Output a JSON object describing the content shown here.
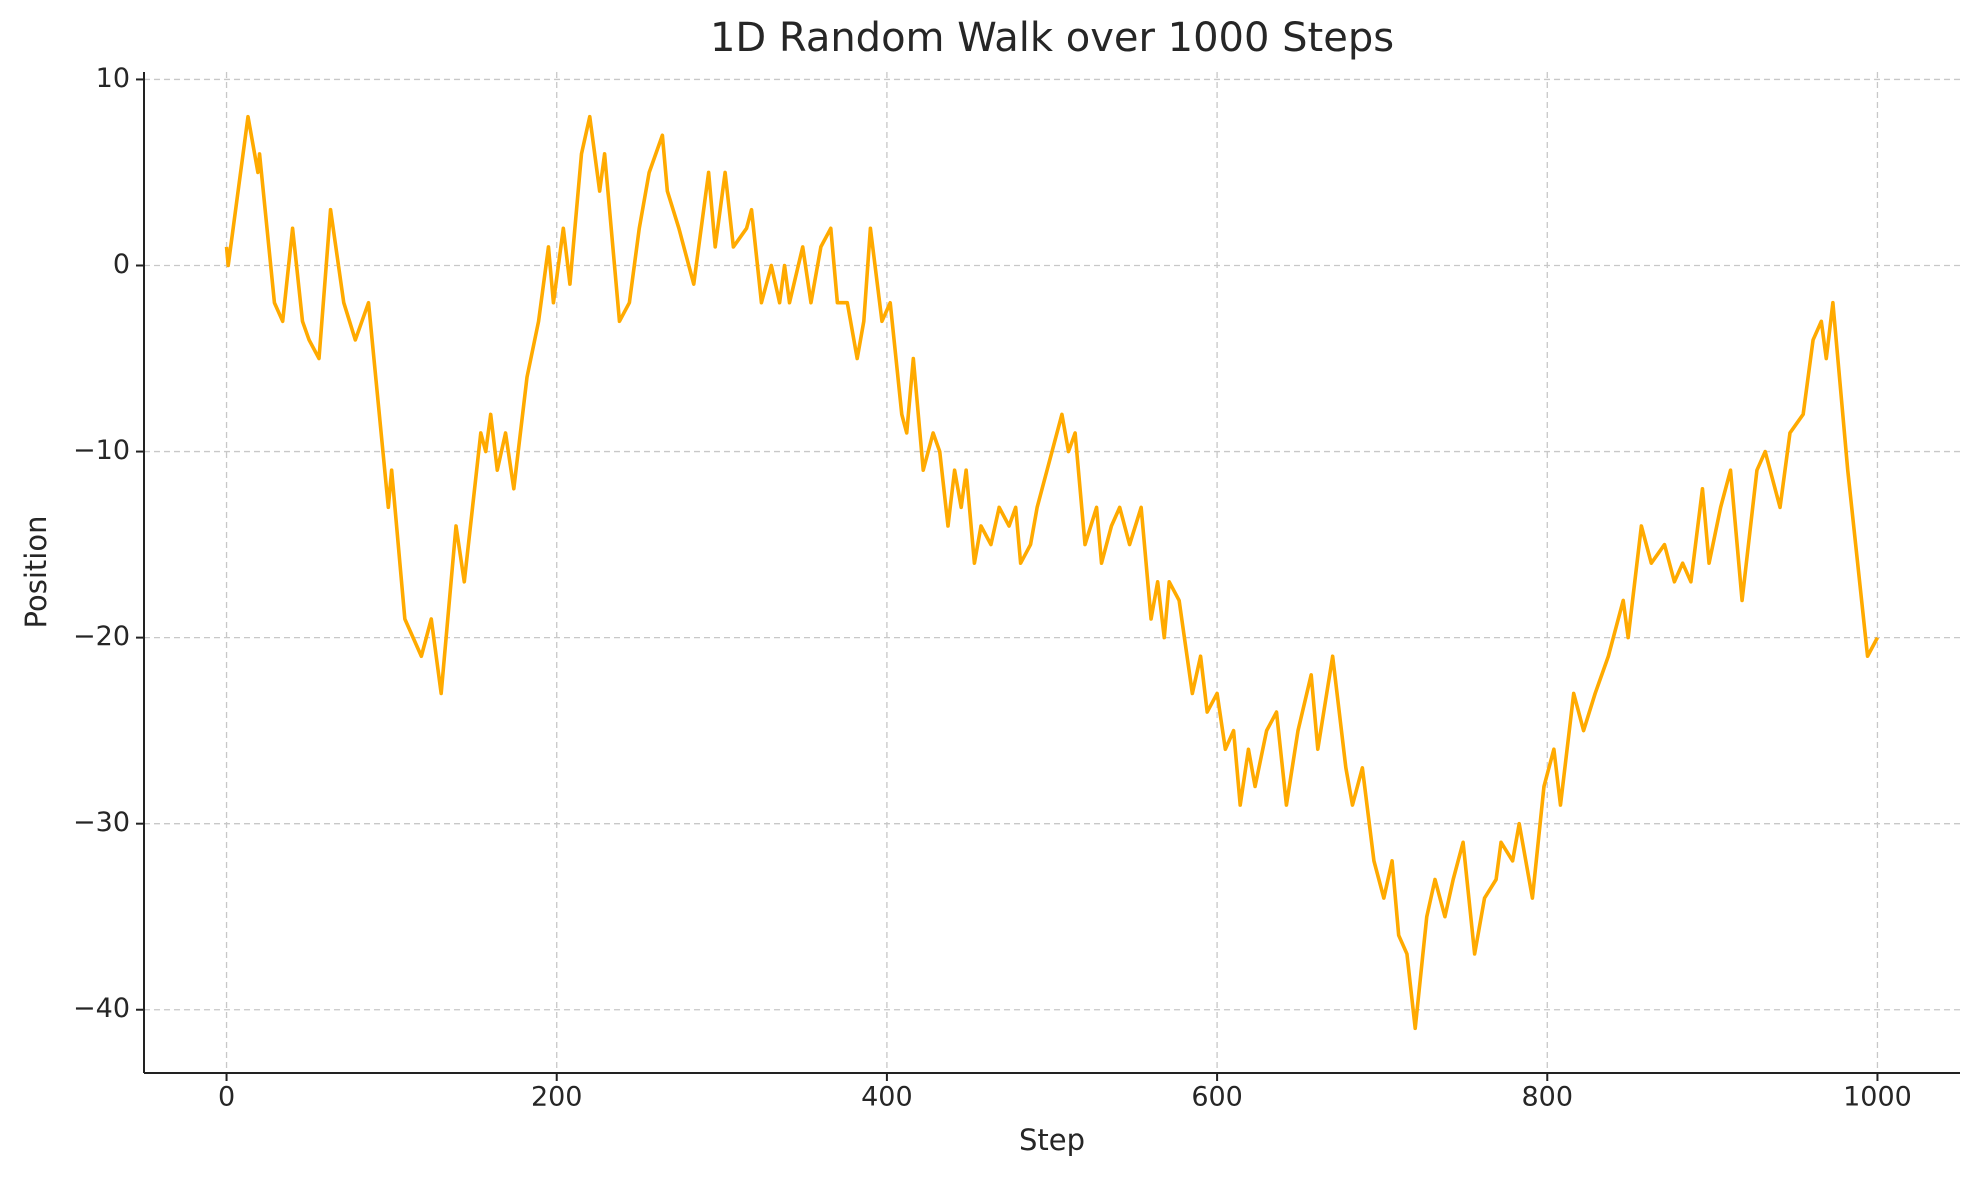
{
  "chart_data": {
    "type": "line",
    "title": "1D Random Walk over 1000 Steps",
    "x_label": "Step",
    "y_label": "Position",
    "x": [
      0,
      1,
      13,
      19,
      20,
      29,
      34,
      40,
      46,
      50,
      56,
      63,
      71,
      78,
      86,
      98,
      100,
      108,
      113,
      118,
      124,
      130,
      139,
      144,
      149,
      154,
      157,
      160,
      164,
      169,
      174,
      182,
      189,
      195,
      198,
      204,
      208,
      215,
      220,
      226,
      229,
      238,
      244,
      250,
      256,
      264,
      267,
      274,
      283,
      292,
      296,
      302,
      307,
      315,
      318,
      324,
      330,
      335,
      338,
      341,
      349,
      354,
      360,
      366,
      370,
      376,
      382,
      386,
      390,
      397,
      402,
      409,
      412,
      416,
      422,
      428,
      432,
      437,
      441,
      445,
      448,
      453,
      457,
      463,
      468,
      474,
      478,
      481,
      487,
      491,
      497,
      506,
      510,
      514,
      520,
      527,
      530,
      536,
      541,
      547,
      554,
      560,
      564,
      568,
      571,
      577,
      585,
      590,
      594,
      600,
      605,
      610,
      614,
      619,
      623,
      630,
      636,
      642,
      649,
      657,
      661,
      670,
      678,
      682,
      688,
      695,
      701,
      706,
      710,
      715,
      720,
      727,
      732,
      738,
      743,
      749,
      756,
      762,
      769,
      772,
      779,
      783,
      791,
      798,
      804,
      808,
      816,
      822,
      829,
      837,
      846,
      849,
      857,
      863,
      871,
      877,
      882,
      887,
      894,
      898,
      905,
      911,
      918,
      927,
      932,
      941,
      947,
      955,
      961,
      966,
      969,
      973,
      982,
      994,
      1000
    ],
    "values": [
      1,
      0,
      8,
      5,
      6,
      -2,
      -3,
      2,
      -3,
      -4,
      -5,
      3,
      -2,
      -4,
      -2,
      -13,
      -11,
      -19,
      -20,
      -21,
      -19,
      -23,
      -14,
      -17,
      -13,
      -9,
      -10,
      -8,
      -11,
      -9,
      -12,
      -6,
      -3,
      1,
      -2,
      2,
      -1,
      6,
      8,
      4,
      6,
      -3,
      -2,
      2,
      5,
      7,
      4,
      2,
      -1,
      5,
      1,
      5,
      1,
      2,
      3,
      -2,
      0,
      -2,
      0,
      -2,
      1,
      -2,
      1,
      2,
      -2,
      -2,
      -5,
      -3,
      2,
      -3,
      -2,
      -8,
      -9,
      -5,
      -11,
      -9,
      -10,
      -14,
      -11,
      -13,
      -11,
      -16,
      -14,
      -15,
      -13,
      -14,
      -13,
      -16,
      -15,
      -13,
      -11,
      -8,
      -10,
      -9,
      -15,
      -13,
      -16,
      -14,
      -13,
      -15,
      -13,
      -19,
      -17,
      -20,
      -17,
      -18,
      -23,
      -21,
      -24,
      -23,
      -26,
      -25,
      -29,
      -26,
      -28,
      -25,
      -24,
      -29,
      -25,
      -22,
      -26,
      -21,
      -27,
      -29,
      -27,
      -32,
      -34,
      -32,
      -36,
      -37,
      -41,
      -35,
      -33,
      -35,
      -33,
      -31,
      -37,
      -34,
      -33,
      -31,
      -32,
      -30,
      -34,
      -28,
      -26,
      -29,
      -23,
      -25,
      -23,
      -21,
      -18,
      -20,
      -14,
      -16,
      -15,
      -17,
      -16,
      -17,
      -12,
      -16,
      -13,
      -11,
      -18,
      -11,
      -10,
      -13,
      -9,
      -8,
      -4,
      -3,
      -5,
      -2,
      -11,
      -21,
      -20
    ],
    "color": "#ffaa00",
    "xlim": [
      -50,
      1050
    ],
    "xticks": [
      0,
      200,
      400,
      600,
      800,
      1000
    ],
    "ylim": [
      -43.4,
      10.4
    ],
    "yticks": [
      {
        "value": -40,
        "label": "−40"
      },
      {
        "value": -30,
        "label": "−30"
      },
      {
        "value": -20,
        "label": "−20"
      },
      {
        "value": -10,
        "label": "−10"
      },
      0,
      10
    ],
    "grid": true
  }
}
